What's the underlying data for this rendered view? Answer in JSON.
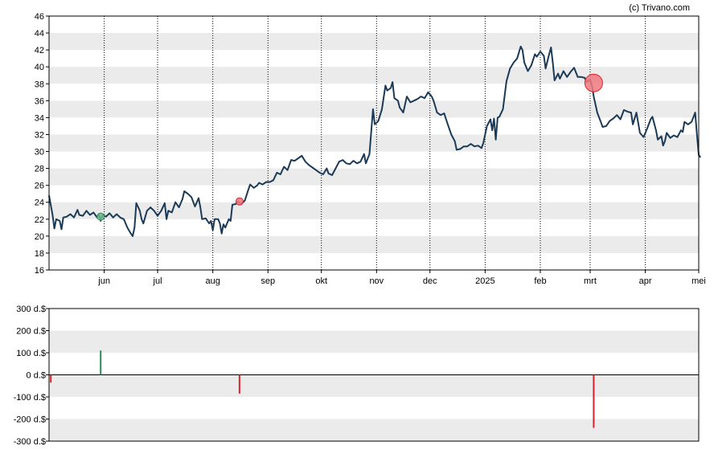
{
  "credit": "(c) Trivano.com",
  "colors": {
    "line": "#1b3a57",
    "band": "#ebebeb",
    "buy": "#2e8b57",
    "sell": "#e0202c",
    "marker_sell_fill": "#f07a80",
    "marker_buy_fill": "#6fbf8a"
  },
  "chart_data": [
    {
      "type": "line",
      "title": "",
      "ylim": [
        16,
        46
      ],
      "yticks": [
        "16",
        "18",
        "20",
        "22",
        "24",
        "26",
        "28",
        "30",
        "32",
        "34",
        "36",
        "38",
        "40",
        "42",
        "44",
        "46"
      ],
      "x_range": [
        0,
        365
      ],
      "month_ticks": [
        {
          "label": "jun",
          "x": 31
        },
        {
          "label": "jul",
          "x": 61
        },
        {
          "label": "aug",
          "x": 92
        },
        {
          "label": "sep",
          "x": 123
        },
        {
          "label": "okt",
          "x": 153
        },
        {
          "label": "nov",
          "x": 184
        },
        {
          "label": "dec",
          "x": 214
        },
        {
          "label": "2025",
          "x": 245
        },
        {
          "label": "feb",
          "x": 276
        },
        {
          "label": "mrt",
          "x": 304
        },
        {
          "label": "apr",
          "x": 335
        },
        {
          "label": "mei",
          "x": 365
        }
      ],
      "grid": "horizontal bands, dotted vertical lines at month starts",
      "series": [
        {
          "points": [
            [
              0,
              24.8
            ],
            [
              2,
              22.5
            ],
            [
              3,
              20.9
            ],
            [
              4,
              22.0
            ],
            [
              6,
              21.8
            ],
            [
              7,
              20.8
            ],
            [
              8,
              22.2
            ],
            [
              10,
              22.3
            ],
            [
              12,
              22.6
            ],
            [
              14,
              22.2
            ],
            [
              16,
              23.1
            ],
            [
              17,
              22.5
            ],
            [
              19,
              22.4
            ],
            [
              21,
              23.0
            ],
            [
              23,
              22.5
            ],
            [
              25,
              22.8
            ],
            [
              27,
              22.2
            ],
            [
              28,
              22.6
            ],
            [
              29,
              21.8
            ],
            [
              30,
              22.5
            ],
            [
              32,
              22.3
            ],
            [
              34,
              22.7
            ],
            [
              36,
              22.2
            ],
            [
              38,
              22.6
            ],
            [
              40,
              22.2
            ],
            [
              42,
              22.0
            ],
            [
              44,
              21.0
            ],
            [
              46,
              20.3
            ],
            [
              47,
              20.0
            ],
            [
              48,
              21.0
            ],
            [
              49,
              23.9
            ],
            [
              51,
              23.0
            ],
            [
              52,
              22.0
            ],
            [
              53,
              21.5
            ],
            [
              55,
              23.0
            ],
            [
              57,
              23.4
            ],
            [
              59,
              23.0
            ],
            [
              61,
              22.4
            ],
            [
              63,
              23.0
            ],
            [
              65,
              23.9
            ],
            [
              66,
              22.0
            ],
            [
              67,
              23.0
            ],
            [
              69,
              22.8
            ],
            [
              71,
              24.0
            ],
            [
              73,
              23.4
            ],
            [
              75,
              24.4
            ],
            [
              76,
              25.3
            ],
            [
              78,
              25.0
            ],
            [
              80,
              24.6
            ],
            [
              82,
              23.5
            ],
            [
              84,
              24.5
            ],
            [
              85,
              23.4
            ],
            [
              86,
              22.0
            ],
            [
              88,
              22.1
            ],
            [
              90,
              21.5
            ],
            [
              91,
              21.8
            ],
            [
              92,
              20.7
            ],
            [
              93,
              22.0
            ],
            [
              95,
              22.0
            ],
            [
              96,
              21.5
            ],
            [
              97,
              20.3
            ],
            [
              98,
              21.4
            ],
            [
              99,
              21.0
            ],
            [
              101,
              22.0
            ],
            [
              102,
              21.8
            ],
            [
              103,
              23.7
            ],
            [
              105,
              23.8
            ],
            [
              106,
              24.1
            ],
            [
              108,
              23.8
            ],
            [
              110,
              24.2
            ],
            [
              112,
              25.5
            ],
            [
              113,
              26.1
            ],
            [
              115,
              25.7
            ],
            [
              117,
              26.0
            ],
            [
              118,
              26.3
            ],
            [
              120,
              26.1
            ],
            [
              122,
              26.4
            ],
            [
              124,
              26.4
            ],
            [
              126,
              26.6
            ],
            [
              128,
              27.5
            ],
            [
              130,
              27.3
            ],
            [
              132,
              28.2
            ],
            [
              134,
              27.8
            ],
            [
              136,
              29.0
            ],
            [
              138,
              28.9
            ],
            [
              140,
              29.2
            ],
            [
              142,
              29.5
            ],
            [
              144,
              28.8
            ],
            [
              146,
              28.4
            ],
            [
              148,
              28.1
            ],
            [
              150,
              27.8
            ],
            [
              152,
              27.5
            ],
            [
              154,
              27.3
            ],
            [
              156,
              28.0
            ],
            [
              157,
              27.4
            ],
            [
              159,
              27.2
            ],
            [
              161,
              28.0
            ],
            [
              163,
              28.8
            ],
            [
              165,
              29.0
            ],
            [
              167,
              28.6
            ],
            [
              169,
              28.5
            ],
            [
              171,
              28.9
            ],
            [
              173,
              28.6
            ],
            [
              175,
              28.8
            ],
            [
              177,
              29.7
            ],
            [
              178,
              28.6
            ],
            [
              180,
              29.7
            ],
            [
              182,
              35.0
            ],
            [
              183,
              33.2
            ],
            [
              185,
              33.6
            ],
            [
              187,
              35.0
            ],
            [
              189,
              37.8
            ],
            [
              190,
              37.2
            ],
            [
              192,
              37.5
            ],
            [
              193,
              38.2
            ],
            [
              194,
              36.3
            ],
            [
              196,
              36.0
            ],
            [
              197,
              35.2
            ],
            [
              199,
              34.6
            ],
            [
              201,
              36.5
            ],
            [
              203,
              35.8
            ],
            [
              205,
              36.0
            ],
            [
              207,
              36.2
            ],
            [
              209,
              36.5
            ],
            [
              211,
              36.3
            ],
            [
              213,
              37.0
            ],
            [
              215,
              36.5
            ],
            [
              216,
              36.0
            ],
            [
              218,
              34.6
            ],
            [
              220,
              34.3
            ],
            [
              222,
              34.5
            ],
            [
              224,
              33.2
            ],
            [
              226,
              32.0
            ],
            [
              228,
              31.2
            ],
            [
              229,
              30.2
            ],
            [
              231,
              30.3
            ],
            [
              233,
              30.6
            ],
            [
              235,
              30.6
            ],
            [
              237,
              30.9
            ],
            [
              239,
              30.6
            ],
            [
              241,
              30.7
            ],
            [
              243,
              30.4
            ],
            [
              244,
              31.0
            ],
            [
              246,
              33.0
            ],
            [
              248,
              33.8
            ],
            [
              249,
              32.5
            ],
            [
              250,
              33.9
            ],
            [
              251,
              31.4
            ],
            [
              252,
              34.0
            ],
            [
              253,
              34.1
            ],
            [
              255,
              35.0
            ],
            [
              257,
              38.3
            ],
            [
              259,
              39.8
            ],
            [
              261,
              40.5
            ],
            [
              263,
              41.0
            ],
            [
              265,
              42.4
            ],
            [
              266,
              42.0
            ],
            [
              267,
              40.5
            ],
            [
              269,
              39.5
            ],
            [
              271,
              40.2
            ],
            [
              273,
              41.5
            ],
            [
              274,
              41.2
            ],
            [
              276,
              41.8
            ],
            [
              278,
              41.3
            ],
            [
              279,
              39.8
            ],
            [
              281,
              41.5
            ],
            [
              282,
              42.3
            ],
            [
              283,
              40.5
            ],
            [
              284,
              38.4
            ],
            [
              286,
              39.2
            ],
            [
              287,
              38.6
            ],
            [
              289,
              39.5
            ],
            [
              291,
              38.8
            ],
            [
              293,
              39.4
            ],
            [
              295,
              39.9
            ],
            [
              297,
              38.8
            ],
            [
              299,
              38.8
            ],
            [
              301,
              38.7
            ],
            [
              302,
              38.2
            ],
            [
              304,
              38.5
            ],
            [
              305,
              37.8
            ],
            [
              306,
              36.5
            ],
            [
              308,
              34.6
            ],
            [
              310,
              33.5
            ],
            [
              311,
              32.9
            ],
            [
              313,
              33.0
            ],
            [
              315,
              33.6
            ],
            [
              317,
              33.9
            ],
            [
              319,
              34.3
            ],
            [
              321,
              33.8
            ],
            [
              323,
              34.9
            ],
            [
              325,
              34.7
            ],
            [
              327,
              34.6
            ],
            [
              328,
              33.2
            ],
            [
              330,
              34.6
            ],
            [
              331,
              33.4
            ],
            [
              332,
              32.2
            ],
            [
              334,
              31.7
            ],
            [
              336,
              32.7
            ],
            [
              338,
              33.8
            ],
            [
              339,
              34.1
            ],
            [
              341,
              32.5
            ],
            [
              342,
              31.4
            ],
            [
              344,
              31.8
            ],
            [
              345,
              30.7
            ],
            [
              346,
              31.2
            ],
            [
              347,
              32.2
            ],
            [
              349,
              31.6
            ],
            [
              351,
              31.9
            ],
            [
              353,
              31.7
            ],
            [
              355,
              32.5
            ],
            [
              356,
              32.3
            ],
            [
              357,
              33.5
            ],
            [
              359,
              33.2
            ],
            [
              361,
              33.5
            ],
            [
              363,
              34.6
            ],
            [
              364,
              32.0
            ],
            [
              365,
              29.6
            ],
            [
              366,
              29.3
            ]
          ]
        }
      ],
      "markers": [
        {
          "kind": "buy",
          "x": 29,
          "y": 22.3,
          "size": "small"
        },
        {
          "kind": "sell",
          "x": 107,
          "y": 24.1,
          "size": "small"
        },
        {
          "kind": "sell",
          "x": 306,
          "y": 38.1,
          "size": "large"
        }
      ]
    },
    {
      "type": "bar",
      "title": "",
      "ylim": [
        -300,
        300
      ],
      "yticks": [
        "300 d.$",
        "200 d.$",
        "100 d.$",
        "0 d.$",
        "-100 d.$",
        "-200 d.$",
        "-300 d.$"
      ],
      "bars": [
        {
          "x": 1,
          "value": -35,
          "kind": "sell"
        },
        {
          "x": 29,
          "value": 110,
          "kind": "buy"
        },
        {
          "x": 107,
          "value": -85,
          "kind": "sell"
        },
        {
          "x": 306,
          "value": -240,
          "kind": "sell"
        }
      ]
    }
  ]
}
